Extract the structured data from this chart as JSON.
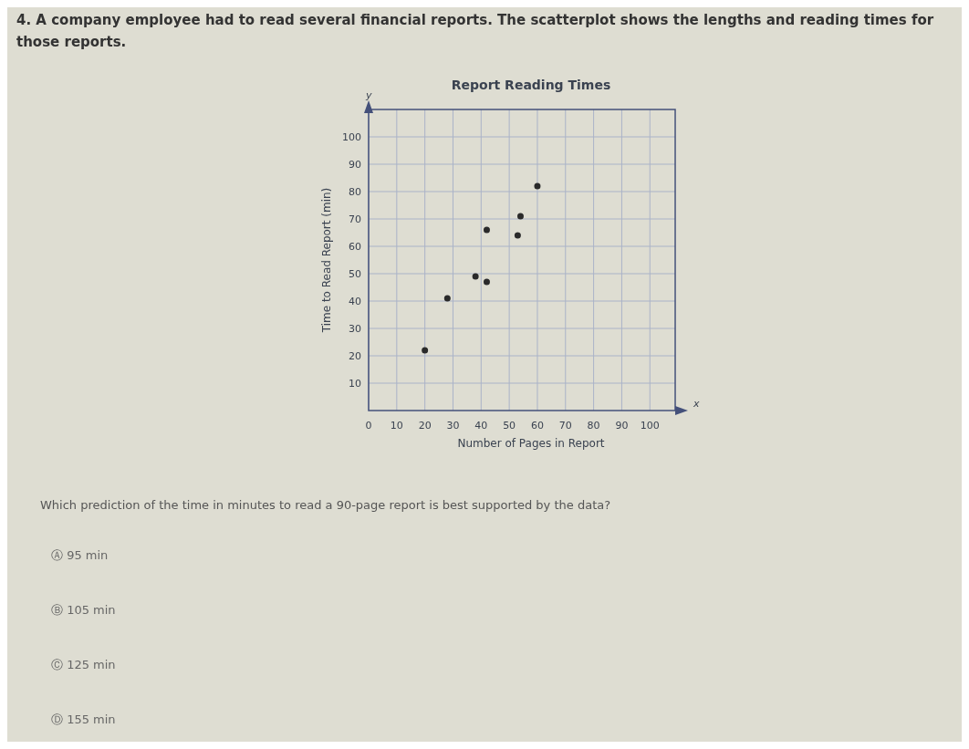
{
  "chart_data": {
    "type": "scatter",
    "title": "Report Reading Times",
    "xlabel": "Number of Pages in Report",
    "ylabel": "Time to Read Report (min)",
    "x": [
      20,
      28,
      38,
      42,
      42,
      53,
      54,
      60
    ],
    "series": [
      {
        "color": "#2a2a2a",
        "values": [
          22,
          41,
          49,
          47,
          66,
          64,
          71,
          82
        ]
      }
    ],
    "xlim": [
      0,
      109
    ],
    "ylim": [
      0,
      110
    ],
    "xticks": [
      0,
      10,
      20,
      30,
      40,
      50,
      60,
      70,
      80,
      90,
      100
    ],
    "yticks": [
      10,
      20,
      30,
      40,
      50,
      60,
      70,
      80,
      90,
      100
    ],
    "grid": true,
    "marker": "circle",
    "annotations": [
      "4. A company employee had to read several financial reports. The scatterplot shows the lengths and reading times for those reports.",
      "Which prediction of the time in minutes to read a 90-page report is best supported by the data?",
      "Ⓐ 95 min",
      "Ⓑ 105 min",
      "Ⓒ 125 min",
      "Ⓓ 155 min",
      "x",
      "y"
    ]
  }
}
